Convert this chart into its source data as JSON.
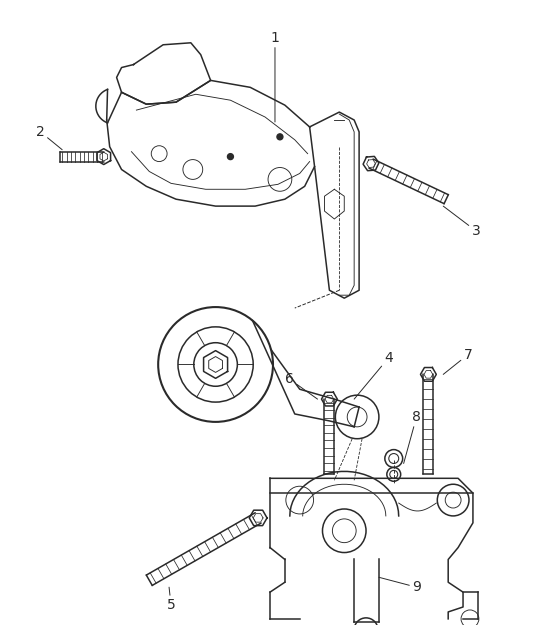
{
  "background_color": "#ffffff",
  "line_color": "#2a2a2a",
  "fig_width": 5.45,
  "fig_height": 6.28,
  "dpi": 100
}
